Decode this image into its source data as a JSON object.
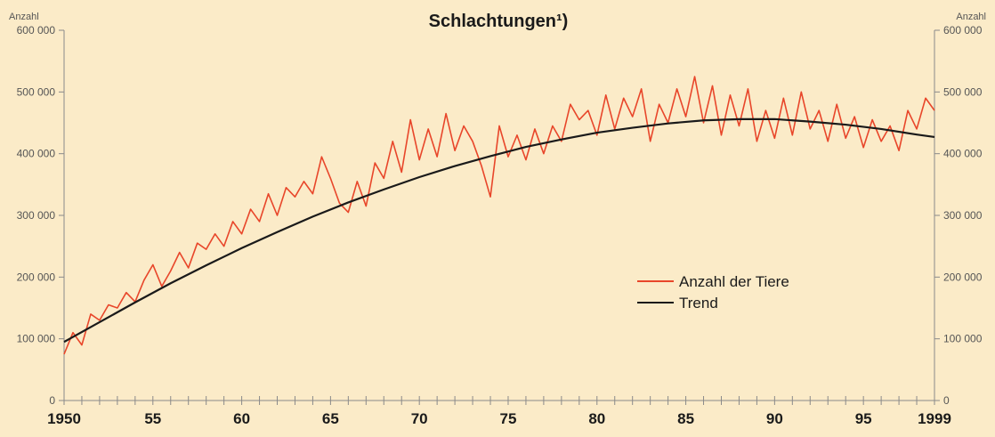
{
  "chart_data": {
    "type": "line",
    "title": "Schlachtungen¹)",
    "ylabel_left": "Anzahl",
    "ylabel_right": "Anzahl",
    "xlim": [
      1950,
      1999
    ],
    "ylim": [
      0,
      600000
    ],
    "y_ticks": [
      0,
      100000,
      200000,
      300000,
      400000,
      500000,
      600000
    ],
    "y_tick_labels": [
      "0",
      "100 000",
      "200 000",
      "300 000",
      "400 000",
      "500 000",
      "600 000"
    ],
    "x_ticks": [
      1950,
      1955,
      1960,
      1965,
      1970,
      1975,
      1980,
      1985,
      1990,
      1995,
      1999
    ],
    "x_tick_labels": [
      "1950",
      "55",
      "60",
      "65",
      "70",
      "75",
      "80",
      "85",
      "90",
      "95",
      "1999"
    ],
    "grid": false,
    "legend_position": "center-right",
    "colors": {
      "background": "#fbebc8",
      "series_actual": "#e8462a",
      "series_trend": "#1a1a1a",
      "axis": "#8a8a8a"
    },
    "series": [
      {
        "name": "Anzahl der Tiere",
        "x": [
          1950.0,
          1950.5,
          1951.0,
          1951.5,
          1952.0,
          1952.5,
          1953.0,
          1953.5,
          1954.0,
          1954.5,
          1955.0,
          1955.5,
          1956.0,
          1956.5,
          1957.0,
          1957.5,
          1958.0,
          1958.5,
          1959.0,
          1959.5,
          1960.0,
          1960.5,
          1961.0,
          1961.5,
          1962.0,
          1962.5,
          1963.0,
          1963.5,
          1964.0,
          1964.5,
          1965.0,
          1965.5,
          1966.0,
          1966.5,
          1967.0,
          1967.5,
          1968.0,
          1968.5,
          1969.0,
          1969.5,
          1970.0,
          1970.5,
          1971.0,
          1971.5,
          1972.0,
          1972.5,
          1973.0,
          1973.5,
          1974.0,
          1974.5,
          1975.0,
          1975.5,
          1976.0,
          1976.5,
          1977.0,
          1977.5,
          1978.0,
          1978.5,
          1979.0,
          1979.5,
          1980.0,
          1980.5,
          1981.0,
          1981.5,
          1982.0,
          1982.5,
          1983.0,
          1983.5,
          1984.0,
          1984.5,
          1985.0,
          1985.5,
          1986.0,
          1986.5,
          1987.0,
          1987.5,
          1988.0,
          1988.5,
          1989.0,
          1989.5,
          1990.0,
          1990.5,
          1991.0,
          1991.5,
          1992.0,
          1992.5,
          1993.0,
          1993.5,
          1994.0,
          1994.5,
          1995.0,
          1995.5,
          1996.0,
          1996.5,
          1997.0,
          1997.5,
          1998.0,
          1998.5,
          1999.0
        ],
        "values": [
          75000,
          110000,
          90000,
          140000,
          130000,
          155000,
          150000,
          175000,
          160000,
          195000,
          220000,
          185000,
          210000,
          240000,
          215000,
          255000,
          245000,
          270000,
          250000,
          290000,
          270000,
          310000,
          290000,
          335000,
          300000,
          345000,
          330000,
          355000,
          335000,
          395000,
          360000,
          320000,
          305000,
          355000,
          315000,
          385000,
          360000,
          420000,
          370000,
          455000,
          390000,
          440000,
          395000,
          465000,
          405000,
          445000,
          420000,
          380000,
          330000,
          445000,
          395000,
          430000,
          390000,
          440000,
          400000,
          445000,
          420000,
          480000,
          455000,
          470000,
          430000,
          495000,
          440000,
          490000,
          460000,
          505000,
          420000,
          480000,
          450000,
          505000,
          460000,
          525000,
          450000,
          510000,
          430000,
          495000,
          445000,
          505000,
          420000,
          470000,
          425000,
          490000,
          430000,
          500000,
          440000,
          470000,
          420000,
          480000,
          425000,
          460000,
          410000,
          455000,
          420000,
          445000,
          405000,
          470000,
          440000,
          490000,
          470000
        ]
      },
      {
        "name": "Trend",
        "x": [
          1950,
          1952,
          1954,
          1956,
          1958,
          1960,
          1962,
          1964,
          1966,
          1968,
          1970,
          1972,
          1974,
          1976,
          1978,
          1980,
          1982,
          1984,
          1986,
          1988,
          1990,
          1992,
          1994,
          1996,
          1998,
          1999
        ],
        "values": [
          95000,
          127000,
          159000,
          190000,
          219000,
          247000,
          273000,
          298000,
          321000,
          342000,
          362000,
          380000,
          396000,
          411000,
          423000,
          434000,
          442000,
          449000,
          454000,
          456000,
          456000,
          452000,
          447000,
          440000,
          431000,
          427000
        ]
      }
    ]
  }
}
